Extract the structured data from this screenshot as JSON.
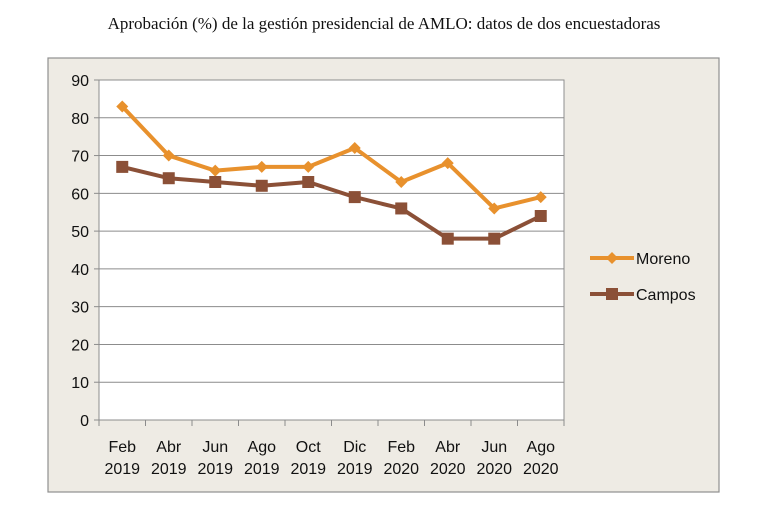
{
  "page_title": "Aprobación (%) de la gestión presidencial de AMLO: datos de dos encuestadoras",
  "chart_data": {
    "type": "line",
    "title": "Aprobación (%) de la gestión presidencial de AMLO: datos de dos encuestadoras",
    "categories": [
      [
        "Feb",
        "2019"
      ],
      [
        "Abr",
        "2019"
      ],
      [
        "Jun",
        "2019"
      ],
      [
        "Ago",
        "2019"
      ],
      [
        "Oct",
        "2019"
      ],
      [
        "Dic",
        "2019"
      ],
      [
        "Feb",
        "2020"
      ],
      [
        "Abr",
        "2020"
      ],
      [
        "Jun",
        "2020"
      ],
      [
        "Ago",
        "2020"
      ]
    ],
    "series": [
      {
        "name": "Moreno",
        "color": "#E8912D",
        "marker": "diamond",
        "values": [
          83,
          70,
          66,
          67,
          67,
          72,
          63,
          68,
          56,
          59
        ]
      },
      {
        "name": "Campos",
        "color": "#8B5037",
        "marker": "square",
        "values": [
          67,
          64,
          63,
          62,
          63,
          59,
          56,
          48,
          48,
          54
        ]
      }
    ],
    "ylim": [
      0,
      90
    ],
    "yticks": [
      0,
      10,
      20,
      30,
      40,
      50,
      60,
      70,
      80,
      90
    ],
    "grid": true,
    "legend_position": "right",
    "plot_background": "#ffffff",
    "chart_background": "#EEEBE4"
  }
}
